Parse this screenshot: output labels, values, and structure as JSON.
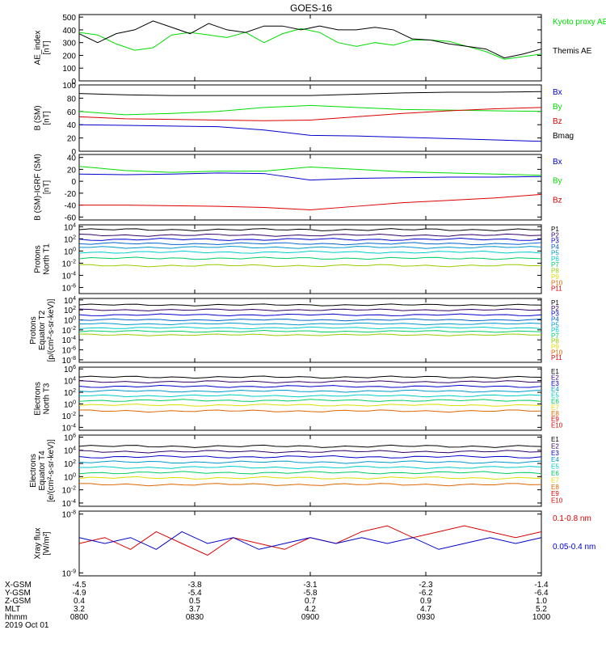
{
  "title": "GOES-16",
  "time_axis": {
    "ticks": [
      "0800",
      "0830",
      "0900",
      "0930",
      "1000"
    ],
    "row_labels": [
      "X-GSM",
      "Y-GSM",
      "Z-GSM",
      "MLT",
      "hhmm",
      "2019 Oct 01"
    ],
    "rows": [
      [
        "-4.5",
        "-3.8",
        "-3.1",
        "-2.3",
        "-1.4"
      ],
      [
        "-4.9",
        "-5.4",
        "-5.8",
        "-6.2",
        "-6.4"
      ],
      [
        "0.4",
        "0.5",
        "0.7",
        "0.9",
        "1.0"
      ],
      [
        "3.2",
        "3.7",
        "4.2",
        "4.7",
        "5.2"
      ],
      [
        "0800",
        "0830",
        "0900",
        "0930",
        "1000"
      ]
    ]
  },
  "colors": {
    "black": "#000000",
    "blue": "#0000cc",
    "green": "#00dd00",
    "red": "#dd0000",
    "purple": "#660099",
    "cyan": "#00cccc",
    "yellow": "#dddd00"
  },
  "chart_data": [
    {
      "type": "line",
      "ylabel": "AE_index\n[nT]",
      "yticks": [
        "500",
        "400",
        "300",
        "200",
        "100",
        "0"
      ],
      "ylim": [
        0,
        520
      ],
      "x": [
        0,
        0.04,
        0.08,
        0.12,
        0.16,
        0.2,
        0.24,
        0.28,
        0.32,
        0.36,
        0.4,
        0.44,
        0.48,
        0.52,
        0.56,
        0.6,
        0.64,
        0.68,
        0.72,
        0.76,
        0.8,
        0.84,
        0.88,
        0.92,
        0.96,
        1
      ],
      "series": [
        {
          "name": "Kyoto proxy AE",
          "color": "#00dd00",
          "values": [
            380,
            360,
            290,
            240,
            260,
            360,
            380,
            360,
            340,
            380,
            300,
            370,
            410,
            380,
            300,
            270,
            300,
            280,
            320,
            320,
            310,
            270,
            230,
            170,
            190,
            210
          ]
        },
        {
          "name": "Themis AE",
          "color": "#000000",
          "values": [
            370,
            300,
            370,
            400,
            470,
            420,
            370,
            450,
            400,
            380,
            430,
            430,
            400,
            430,
            400,
            400,
            420,
            400,
            330,
            320,
            290,
            270,
            250,
            180,
            210,
            250
          ]
        }
      ]
    },
    {
      "type": "line",
      "ylabel": "B (SM)\n[nT]",
      "yticks": [
        "100",
        "80",
        "60",
        "40",
        "20",
        "0"
      ],
      "ylim": [
        0,
        100
      ],
      "x": [
        0,
        0.1,
        0.2,
        0.3,
        0.4,
        0.5,
        0.6,
        0.7,
        0.8,
        0.9,
        1
      ],
      "series": [
        {
          "name": "Bx",
          "color": "#0000cc",
          "values": [
            40,
            39,
            38,
            37,
            32,
            24,
            23,
            21,
            19,
            17,
            15
          ]
        },
        {
          "name": "By",
          "color": "#00dd00",
          "values": [
            60,
            55,
            57,
            60,
            66,
            69,
            66,
            63,
            62,
            61,
            60
          ]
        },
        {
          "name": "Bz",
          "color": "#dd0000",
          "values": [
            52,
            49,
            48,
            47,
            46,
            47,
            52,
            57,
            61,
            64,
            66
          ]
        },
        {
          "name": "Bmag",
          "color": "#000000",
          "values": [
            87,
            85,
            84,
            84,
            84,
            84,
            86,
            88,
            89,
            89,
            90
          ]
        }
      ]
    },
    {
      "type": "line",
      "ylabel": "B (SM)-IGRF (SM)\n[nT]",
      "yticks": [
        "40",
        "20",
        "0",
        "-20",
        "-40",
        "-60"
      ],
      "ylim": [
        -65,
        45
      ],
      "x": [
        0,
        0.1,
        0.2,
        0.3,
        0.4,
        0.5,
        0.6,
        0.7,
        0.8,
        0.9,
        1
      ],
      "series": [
        {
          "name": "Bx",
          "color": "#0000cc",
          "values": [
            12,
            11,
            12,
            14,
            13,
            2,
            5,
            6,
            7,
            7,
            8
          ]
        },
        {
          "name": "By",
          "color": "#00dd00",
          "values": [
            25,
            18,
            15,
            17,
            17,
            24,
            20,
            16,
            14,
            12,
            10
          ]
        },
        {
          "name": "Bz",
          "color": "#dd0000",
          "values": [
            -40,
            -40,
            -41,
            -42,
            -44,
            -48,
            -42,
            -36,
            -32,
            -28,
            -22
          ]
        }
      ]
    },
    {
      "type": "line",
      "log": true,
      "ylabel": "Protons\nNorth T1",
      "yticks": [
        "10^4",
        "10^2",
        "10^0",
        "10^-2",
        "10^-4",
        "10^-6"
      ],
      "ylim": [
        -7,
        4.3
      ],
      "legend": [
        "P1",
        "P2",
        "P3",
        "P4",
        "P5",
        "P6",
        "P7",
        "P8",
        "P9",
        "P10",
        "P11"
      ],
      "legend_colors": [
        "#000000",
        "#330066",
        "#0000cc",
        "#0066cc",
        "#0099cc",
        "#00cccc",
        "#00cc66",
        "#99cc00",
        "#dddd00",
        "#dd6600",
        "#dd0000"
      ],
      "levels": [
        3.5,
        2.6,
        1.9,
        1.2,
        0.6,
        -0.2,
        -1.2,
        -2.4
      ]
    },
    {
      "type": "line",
      "log": true,
      "ylabel": "Protons\nEquator T2\n[p/(cm²-s-sr-keV)]",
      "yticks": [
        "10^4",
        "10^2",
        "10^0",
        "10^-2",
        "10^-4",
        "10^-6",
        "10^-8"
      ],
      "ylim": [
        -8.5,
        4.3
      ],
      "legend": [
        "P1",
        "P2",
        "P3",
        "P4",
        "P5",
        "P6",
        "P7",
        "P8",
        "P9",
        "P10",
        "P11"
      ],
      "legend_colors": [
        "#000000",
        "#330066",
        "#0000cc",
        "#0066cc",
        "#0099cc",
        "#00cccc",
        "#00cc66",
        "#99cc00",
        "#dddd00",
        "#dd6600",
        "#dd0000"
      ],
      "levels": [
        3.0,
        2.0,
        1.0,
        0.0,
        -0.8,
        -1.6,
        -2.3,
        -3.0
      ]
    },
    {
      "type": "line",
      "log": true,
      "ylabel": "Electrons\nNorth T3",
      "yticks": [
        "10^6",
        "10^4",
        "10^2",
        "10^0",
        "10^-2",
        "10^-4"
      ],
      "ylim": [
        -4.5,
        6.3
      ],
      "legend": [
        "E1",
        "E2",
        "E3",
        "E4",
        "E5",
        "E6",
        "E7",
        "E8",
        "E9",
        "E10"
      ],
      "legend_colors": [
        "#000000",
        "#330066",
        "#0000cc",
        "#0099cc",
        "#00cccc",
        "#00cc66",
        "#dddd00",
        "#dd6600",
        "#dd0000",
        "#dd0000"
      ],
      "levels": [
        4.6,
        3.8,
        3.0,
        2.2,
        1.4,
        0.6,
        -0.2,
        -1.2
      ]
    },
    {
      "type": "line",
      "log": true,
      "ylabel": "Electrons\nEquator T4\n[e/(cm²-s-sr-keV)]",
      "yticks": [
        "10^6",
        "10^4",
        "10^2",
        "10^0",
        "10^-2",
        "10^-4"
      ],
      "ylim": [
        -4.5,
        6.3
      ],
      "legend": [
        "E1",
        "E2",
        "E3",
        "E4",
        "E5",
        "E6",
        "E7",
        "E8",
        "E9",
        "E10"
      ],
      "legend_colors": [
        "#000000",
        "#330066",
        "#0000cc",
        "#0099cc",
        "#00cccc",
        "#00cc66",
        "#dddd00",
        "#dd6600",
        "#dd0000",
        "#dd0000"
      ],
      "levels": [
        4.6,
        3.8,
        3.0,
        2.2,
        1.4,
        0.6,
        -0.2,
        -1.2
      ]
    },
    {
      "type": "line",
      "log": true,
      "ylabel": "Xray flux\n[W/m²]",
      "yticks": [
        "10^-8",
        "10^-9"
      ],
      "ylim": [
        -9.05,
        -7.95
      ],
      "series": [
        {
          "name": "0.1-0.8 nm",
          "color": "#dd0000",
          "values": [
            -8.5,
            -8.4,
            -8.6,
            -8.3,
            -8.5,
            -8.7,
            -8.4,
            -8.5,
            -8.6,
            -8.4,
            -8.5,
            -8.3,
            -8.2,
            -8.4,
            -8.3,
            -8.2,
            -8.3,
            -8.4,
            -8.3
          ]
        },
        {
          "name": "0.05-0.4 nm",
          "color": "#0000cc",
          "values": [
            -8.4,
            -8.5,
            -8.4,
            -8.6,
            -8.3,
            -8.5,
            -8.4,
            -8.6,
            -8.5,
            -8.4,
            -8.5,
            -8.4,
            -8.5,
            -8.4,
            -8.6,
            -8.5,
            -8.4,
            -8.5,
            -8.4
          ]
        }
      ]
    }
  ]
}
